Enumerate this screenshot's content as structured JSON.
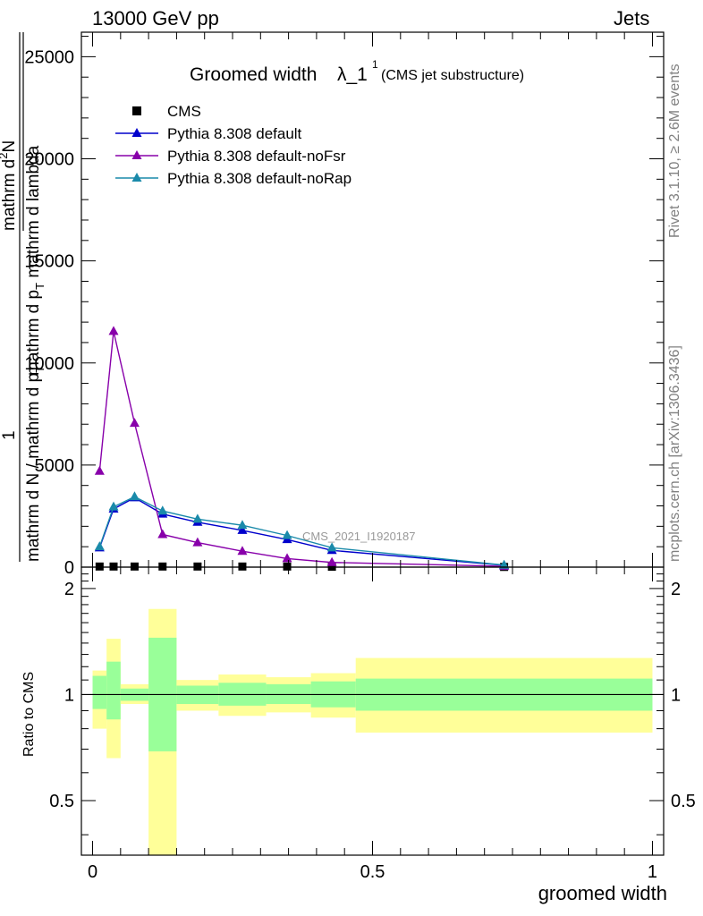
{
  "header": {
    "left": "13000 GeV pp",
    "right": "Jets"
  },
  "side": {
    "rivet": "Rivet 3.1.10, ≥ 2.6M events",
    "mcplots": "mcplots.cern.ch [arXiv:1306.3436]"
  },
  "chart_data": [
    {
      "type": "line",
      "title": "Groomed width",
      "title_symbol": "λ_1",
      "title_sup": "1",
      "subtitle": "(CMS jet substructure)",
      "ylabel_main": "1 / mathrm dN / mathrm d p_T mathrm d p_T mathrm d^2N / mathrm d lambda",
      "ylabel_parts": [
        "mathrm d N",
        "mathrm d p",
        "T",
        "mathrm d p",
        "T",
        "mathrm d",
        "2",
        "N",
        "mathrm d lambda",
        "1"
      ],
      "ylim": [
        0,
        26200
      ],
      "yticks": [
        0,
        5000,
        10000,
        15000,
        20000,
        25000
      ],
      "ytick_labels": [
        "0",
        "5000",
        "10000",
        "15000",
        "20000",
        "25000"
      ],
      "xlim": [
        -0.02,
        1.02
      ],
      "watermark": "CMS_2021_I1920187",
      "legend_position": "top-left",
      "series": [
        {
          "name": "CMS",
          "color": "#000000",
          "marker": "square",
          "x": [
            0.0125,
            0.0375,
            0.075,
            0.125,
            0.1875,
            0.2675,
            0.3475,
            0.4275,
            0.735
          ],
          "values": [
            30,
            30,
            30,
            30,
            30,
            30,
            30,
            20,
            10
          ]
        },
        {
          "name": "Pythia 8.308 default",
          "color": "#0000cc",
          "marker": "triangle",
          "x": [
            0.0125,
            0.0375,
            0.075,
            0.125,
            0.1875,
            0.2675,
            0.3475,
            0.4275,
            0.735
          ],
          "values": [
            950,
            2850,
            3400,
            2600,
            2200,
            1800,
            1350,
            820,
            90
          ]
        },
        {
          "name": "Pythia 8.308 default-noFsr",
          "color": "#8800aa",
          "marker": "triangle",
          "x": [
            0.0125,
            0.0375,
            0.075,
            0.125,
            0.1875,
            0.2675,
            0.3475,
            0.4275,
            0.735
          ],
          "values": [
            4700,
            11550,
            7050,
            1600,
            1200,
            780,
            420,
            230,
            40
          ]
        },
        {
          "name": "Pythia 8.308 default-noRap",
          "color": "#1a8aaa",
          "marker": "triangle",
          "x": [
            0.0125,
            0.0375,
            0.075,
            0.125,
            0.1875,
            0.2675,
            0.3475,
            0.4275,
            0.735
          ],
          "values": [
            1000,
            2950,
            3450,
            2750,
            2350,
            2050,
            1550,
            950,
            100
          ]
        }
      ]
    },
    {
      "type": "area",
      "ylabel": "Ratio to CMS",
      "xlabel": "groomed width",
      "xlim": [
        -0.02,
        1.02
      ],
      "xticks": [
        0,
        0.5,
        1
      ],
      "xtick_labels": [
        "0",
        "0.5",
        "1"
      ],
      "ylim": [
        0.35,
        2.3
      ],
      "yscale": "log",
      "yticks": [
        0.5,
        1,
        2
      ],
      "ytick_labels": [
        "0.5",
        "1",
        "2"
      ],
      "reference": 1,
      "band_colors": {
        "inner": "#99ff99",
        "outer": "#ffff99"
      },
      "bins": [
        {
          "lo": 0.0,
          "hi": 0.025,
          "inner": [
            0.91,
            1.13
          ],
          "outer": [
            0.8,
            1.17
          ]
        },
        {
          "lo": 0.025,
          "hi": 0.05,
          "inner": [
            0.85,
            1.24
          ],
          "outer": [
            0.66,
            1.44
          ]
        },
        {
          "lo": 0.05,
          "hi": 0.1,
          "inner": [
            0.96,
            1.04
          ],
          "outer": [
            0.94,
            1.07
          ]
        },
        {
          "lo": 0.1,
          "hi": 0.15,
          "inner": [
            0.69,
            1.45
          ],
          "outer": [
            0.3,
            1.75
          ]
        },
        {
          "lo": 0.15,
          "hi": 0.225,
          "inner": [
            0.94,
            1.06
          ],
          "outer": [
            0.9,
            1.1
          ]
        },
        {
          "lo": 0.225,
          "hi": 0.31,
          "inner": [
            0.93,
            1.08
          ],
          "outer": [
            0.87,
            1.14
          ]
        },
        {
          "lo": 0.31,
          "hi": 0.39,
          "inner": [
            0.94,
            1.07
          ],
          "outer": [
            0.89,
            1.12
          ]
        },
        {
          "lo": 0.39,
          "hi": 0.47,
          "inner": [
            0.92,
            1.09
          ],
          "outer": [
            0.86,
            1.15
          ]
        },
        {
          "lo": 0.47,
          "hi": 1.0,
          "inner": [
            0.9,
            1.11
          ],
          "outer": [
            0.78,
            1.27
          ]
        }
      ]
    }
  ]
}
